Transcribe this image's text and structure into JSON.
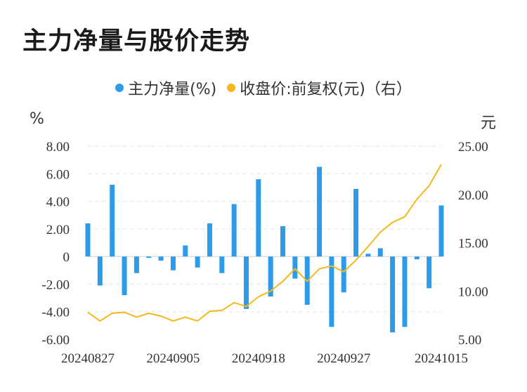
{
  "title": "主力净量与股价走势",
  "legend": {
    "net_label": "主力净量(%)",
    "price_label": "收盘价:前复权(元)（右）"
  },
  "units": {
    "left": "%",
    "right": "元"
  },
  "colors": {
    "bar": "#2e9be8",
    "line": "#f5b81c",
    "grid": "#e6e6e6"
  },
  "chart_data": {
    "type": "bar",
    "x_tick_labels": [
      "20240827",
      "20240905",
      "20240918",
      "20240927",
      "20241015"
    ],
    "y_left": {
      "ticks": [
        "8.00",
        "6.00",
        "4.00",
        "2.00",
        "0",
        "-2.00",
        "-4.00",
        "-6.00"
      ],
      "range": [
        -6,
        8
      ]
    },
    "y_right": {
      "ticks": [
        "25.00",
        "20.00",
        "15.00",
        "10.00",
        "5.00"
      ],
      "range": [
        5,
        25
      ]
    },
    "grid": true,
    "legend_position": "top-center",
    "series": [
      {
        "name": "主力净量(%)",
        "type": "bar",
        "values": [
          2.4,
          -2.1,
          5.2,
          -2.8,
          -1.2,
          -0.1,
          -0.3,
          -1.0,
          0.8,
          -0.8,
          2.4,
          -1.2,
          3.8,
          -3.8,
          5.6,
          -2.9,
          2.2,
          -1.6,
          -3.5,
          6.5,
          -5.1,
          -2.6,
          4.9,
          0.2,
          0.6,
          -5.5,
          -5.1,
          -0.2,
          -2.3,
          3.7
        ]
      },
      {
        "name": "收盘价:前复权(元)（右）",
        "type": "line",
        "values": [
          7.8,
          6.9,
          7.7,
          7.8,
          7.3,
          7.7,
          7.4,
          6.9,
          7.3,
          6.9,
          7.9,
          8.0,
          8.8,
          8.4,
          9.4,
          10.0,
          11.0,
          12.3,
          11.0,
          12.3,
          12.6,
          12.0,
          13.2,
          14.6,
          16.1,
          17.1,
          17.7,
          19.5,
          20.9,
          23.1
        ]
      }
    ]
  }
}
